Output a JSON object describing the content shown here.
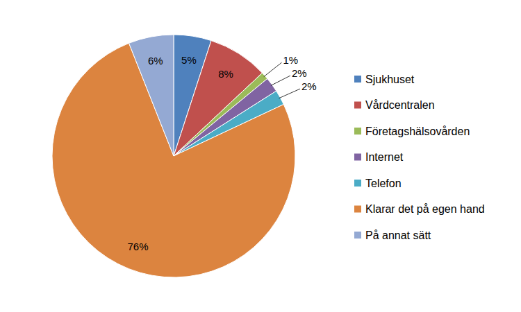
{
  "chart_data": {
    "type": "pie",
    "categories": [
      "Sjukhuset",
      "Vårdcentralen",
      "Företagshälsovården",
      "Internet",
      "Telefon",
      "Klarar det på egen hand",
      "På annat sätt"
    ],
    "values": [
      5,
      8,
      1,
      2,
      2,
      76,
      6
    ],
    "value_labels": [
      "5%",
      "8%",
      "1%",
      "2%",
      "2%",
      "76%",
      "6%"
    ],
    "colors": [
      "#4f81bd",
      "#c0504d",
      "#9bbb59",
      "#8064a2",
      "#4bacc6",
      "#dc843f",
      "#94a9d3"
    ],
    "data_labels": true,
    "legend": "right"
  }
}
